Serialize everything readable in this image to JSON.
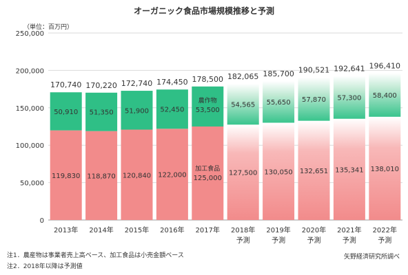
{
  "chart_data": {
    "type": "bar",
    "stacked": true,
    "title": "オーガニック食品市場規模推移と予測",
    "unit_label": "（単位：百万円）",
    "categories": [
      "2013年",
      "2014年",
      "2015年",
      "2016年",
      "2017年",
      "2018年",
      "2019年",
      "2020年",
      "2021年",
      "2022年"
    ],
    "forecast_labels": [
      "",
      "",
      "",
      "",
      "",
      "予測",
      "予測",
      "予測",
      "予測",
      "予測"
    ],
    "forecast_from_index": 5,
    "ylim": [
      0,
      250000
    ],
    "yticks": [
      0,
      50000,
      100000,
      150000,
      200000,
      250000
    ],
    "ytick_labels": [
      "0",
      "50,000",
      "100,000",
      "150,000",
      "200,000",
      "250,000"
    ],
    "series": [
      {
        "name": "加工食品",
        "values": [
          119830,
          118870,
          120840,
          122000,
          125000,
          127500,
          130050,
          132651,
          135341,
          138010
        ],
        "labels": [
          "119,830",
          "118,870",
          "120,840",
          "122,000",
          "125,000",
          "127,500",
          "130,050",
          "132,651",
          "135,341",
          "138,010"
        ],
        "color": "#f28b8b"
      },
      {
        "name": "農作物",
        "values": [
          50910,
          51350,
          51900,
          52450,
          53500,
          54565,
          55650,
          57870,
          57300,
          58400
        ],
        "labels": [
          "50,910",
          "51,350",
          "51,900",
          "52,450",
          "53,500",
          "54,565",
          "55,650",
          "57,870",
          "57,300",
          "58,400"
        ],
        "color": "#2fbf86"
      }
    ],
    "totals": [
      170740,
      170220,
      172740,
      174450,
      178500,
      182065,
      185700,
      190521,
      192641,
      196410
    ],
    "total_labels": [
      "170,740",
      "170,220",
      "172,740",
      "174,450",
      "178,500",
      "182,065",
      "185,700",
      "190,521",
      "192,641",
      "196,410"
    ],
    "grid": true,
    "legend": "none"
  },
  "notes": {
    "note1": "注1．農産物は事業者売上高ベース、加工食品は小売金額ベース",
    "note2": "注2．2018年以降は予測値",
    "source": "矢野経済研究所調べ"
  }
}
